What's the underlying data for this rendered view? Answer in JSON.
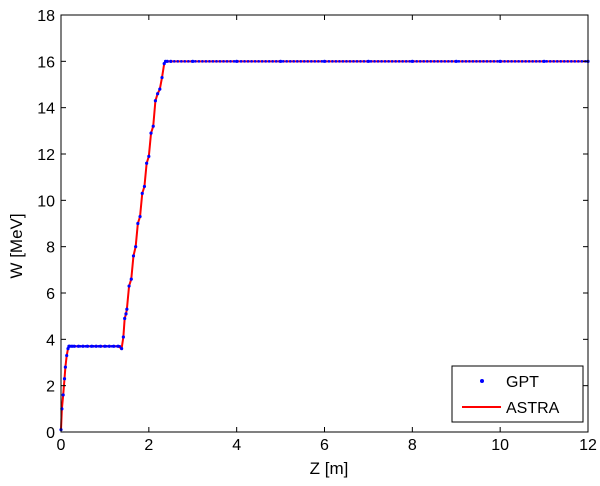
{
  "chart_data": {
    "type": "line",
    "title": "",
    "xlabel": "Z [m]",
    "ylabel": "W [MeV]",
    "xlim": [
      0,
      12
    ],
    "ylim": [
      0,
      18
    ],
    "xticks": [
      0,
      2,
      4,
      6,
      8,
      10,
      12
    ],
    "yticks": [
      0,
      2,
      4,
      6,
      8,
      10,
      12,
      14,
      16,
      18
    ],
    "grid": false,
    "legend": {
      "position": "bottom-right",
      "entries": [
        "GPT",
        "ASTRA"
      ]
    },
    "series": [
      {
        "name": "GPT",
        "style": "markers",
        "color": "#0000ff",
        "x": [
          0,
          0.02,
          0.05,
          0.08,
          0.1,
          0.13,
          0.16,
          0.18,
          0.2,
          0.25,
          0.3,
          0.4,
          0.5,
          0.6,
          0.7,
          0.8,
          0.9,
          1.0,
          1.1,
          1.2,
          1.3,
          1.38,
          1.42,
          1.45,
          1.48,
          1.5,
          1.55,
          1.6,
          1.65,
          1.7,
          1.75,
          1.8,
          1.85,
          1.9,
          1.95,
          2.0,
          2.05,
          2.1,
          2.15,
          2.2,
          2.25,
          2.3,
          2.35,
          2.38,
          2.42,
          2.5,
          3.0,
          4.0,
          5.0,
          6.0,
          7.0,
          8.0,
          9.0,
          10.0,
          11.0,
          12.0
        ],
        "y": [
          0.1,
          1.0,
          1.6,
          2.3,
          2.8,
          3.3,
          3.6,
          3.7,
          3.7,
          3.7,
          3.7,
          3.7,
          3.7,
          3.7,
          3.7,
          3.7,
          3.7,
          3.7,
          3.7,
          3.7,
          3.7,
          3.6,
          4.1,
          4.9,
          5.1,
          5.3,
          6.3,
          6.6,
          7.6,
          8.0,
          9.0,
          9.3,
          10.3,
          10.6,
          11.6,
          11.9,
          12.9,
          13.2,
          14.3,
          14.6,
          14.8,
          15.3,
          15.9,
          16.0,
          16.0,
          16.0,
          16.0,
          16.0,
          16.0,
          16.0,
          16.0,
          16.0,
          16.0,
          16.0,
          16.0,
          16.0
        ]
      },
      {
        "name": "ASTRA",
        "style": "line",
        "color": "#ff0000",
        "x": [
          0,
          0.02,
          0.05,
          0.08,
          0.1,
          0.13,
          0.16,
          0.18,
          0.2,
          0.5,
          1.0,
          1.3,
          1.38,
          1.42,
          1.45,
          1.48,
          1.5,
          1.55,
          1.6,
          1.65,
          1.7,
          1.75,
          1.8,
          1.85,
          1.9,
          1.95,
          2.0,
          2.05,
          2.1,
          2.15,
          2.2,
          2.25,
          2.3,
          2.35,
          2.38,
          2.42,
          3.0,
          6.0,
          9.0,
          12.0
        ],
        "y": [
          0.1,
          1.0,
          1.6,
          2.3,
          2.8,
          3.3,
          3.6,
          3.7,
          3.7,
          3.7,
          3.7,
          3.7,
          3.6,
          4.1,
          4.9,
          5.1,
          5.3,
          6.3,
          6.6,
          7.6,
          8.0,
          9.0,
          9.3,
          10.3,
          10.6,
          11.6,
          11.9,
          12.9,
          13.2,
          14.3,
          14.6,
          14.8,
          15.3,
          15.9,
          16.0,
          16.0,
          16.0,
          16.0,
          16.0,
          16.0
        ]
      }
    ]
  }
}
